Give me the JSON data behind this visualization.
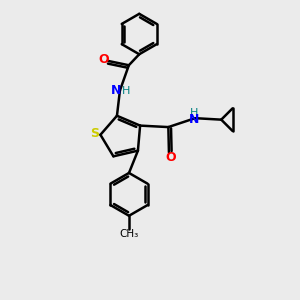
{
  "background_color": "#ebebeb",
  "atom_colors": {
    "S": "#cccc00",
    "N": "#0000ff",
    "O": "#ff0000",
    "C": "#000000",
    "H": "#008080"
  },
  "bond_color": "#000000",
  "bond_width": 1.8,
  "dbo": 0.09
}
